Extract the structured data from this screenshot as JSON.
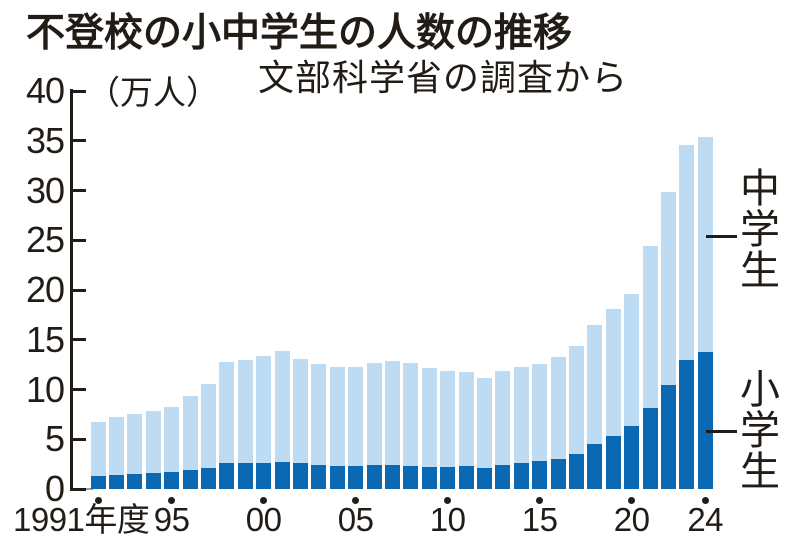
{
  "title": "不登校の小中学生の人数の推移",
  "subtitle": "文部科学省の調査から",
  "y_unit_label": "（万人）",
  "legend": {
    "junior_high": "中学生",
    "elementary": "小学生"
  },
  "colors": {
    "elementary_bar": "#0b69b3",
    "junior_high_bar": "#bddcf4",
    "text": "#221c17"
  },
  "chart_data": {
    "type": "bar",
    "stacked": true,
    "title": "不登校の小中学生の人数の推移",
    "subtitle": "文部科学省の調査から",
    "ylabel": "（万人）",
    "xlabel": "年度",
    "ylim": [
      0,
      40
    ],
    "grid": false,
    "legend_position": "right",
    "x": [
      1991,
      1992,
      1993,
      1994,
      1995,
      1996,
      1997,
      1998,
      1999,
      2000,
      2001,
      2002,
      2003,
      2004,
      2005,
      2006,
      2007,
      2008,
      2009,
      2010,
      2011,
      2012,
      2013,
      2014,
      2015,
      2016,
      2017,
      2018,
      2019,
      2020,
      2021,
      2022,
      2023,
      2024
    ],
    "series": [
      {
        "name": "小学生",
        "color": "#0b69b3",
        "values": [
          1.3,
          1.4,
          1.5,
          1.6,
          1.7,
          1.9,
          2.1,
          2.6,
          2.6,
          2.6,
          2.7,
          2.6,
          2.4,
          2.3,
          2.3,
          2.4,
          2.4,
          2.3,
          2.2,
          2.2,
          2.3,
          2.1,
          2.4,
          2.6,
          2.8,
          3.0,
          3.5,
          4.5,
          5.3,
          6.3,
          8.1,
          10.5,
          13.0,
          13.8
        ]
      },
      {
        "name": "中学生",
        "color": "#bddcf4",
        "values": [
          5.4,
          5.8,
          6.0,
          6.2,
          6.5,
          7.5,
          8.5,
          10.2,
          10.4,
          10.8,
          11.2,
          10.5,
          10.2,
          10.0,
          10.0,
          10.3,
          10.5,
          10.4,
          10.0,
          9.7,
          9.5,
          9.1,
          9.5,
          9.7,
          9.8,
          10.3,
          10.9,
          12.0,
          12.8,
          13.3,
          16.3,
          19.4,
          21.6,
          21.6
        ]
      }
    ],
    "y_ticks": [
      0,
      5,
      10,
      15,
      20,
      25,
      30,
      35,
      40
    ],
    "x_tick_labels": [
      {
        "text": "1991年度",
        "year": 1991
      },
      {
        "text": "95",
        "year": 1995
      },
      {
        "text": "00",
        "year": 2000
      },
      {
        "text": "05",
        "year": 2005
      },
      {
        "text": "10",
        "year": 2010
      },
      {
        "text": "15",
        "year": 2015
      },
      {
        "text": "20",
        "year": 2020
      },
      {
        "text": "24",
        "year": 2024
      }
    ],
    "marked_years": [
      1991,
      1995,
      2000,
      2005,
      2010,
      2015,
      2020,
      2024
    ]
  }
}
